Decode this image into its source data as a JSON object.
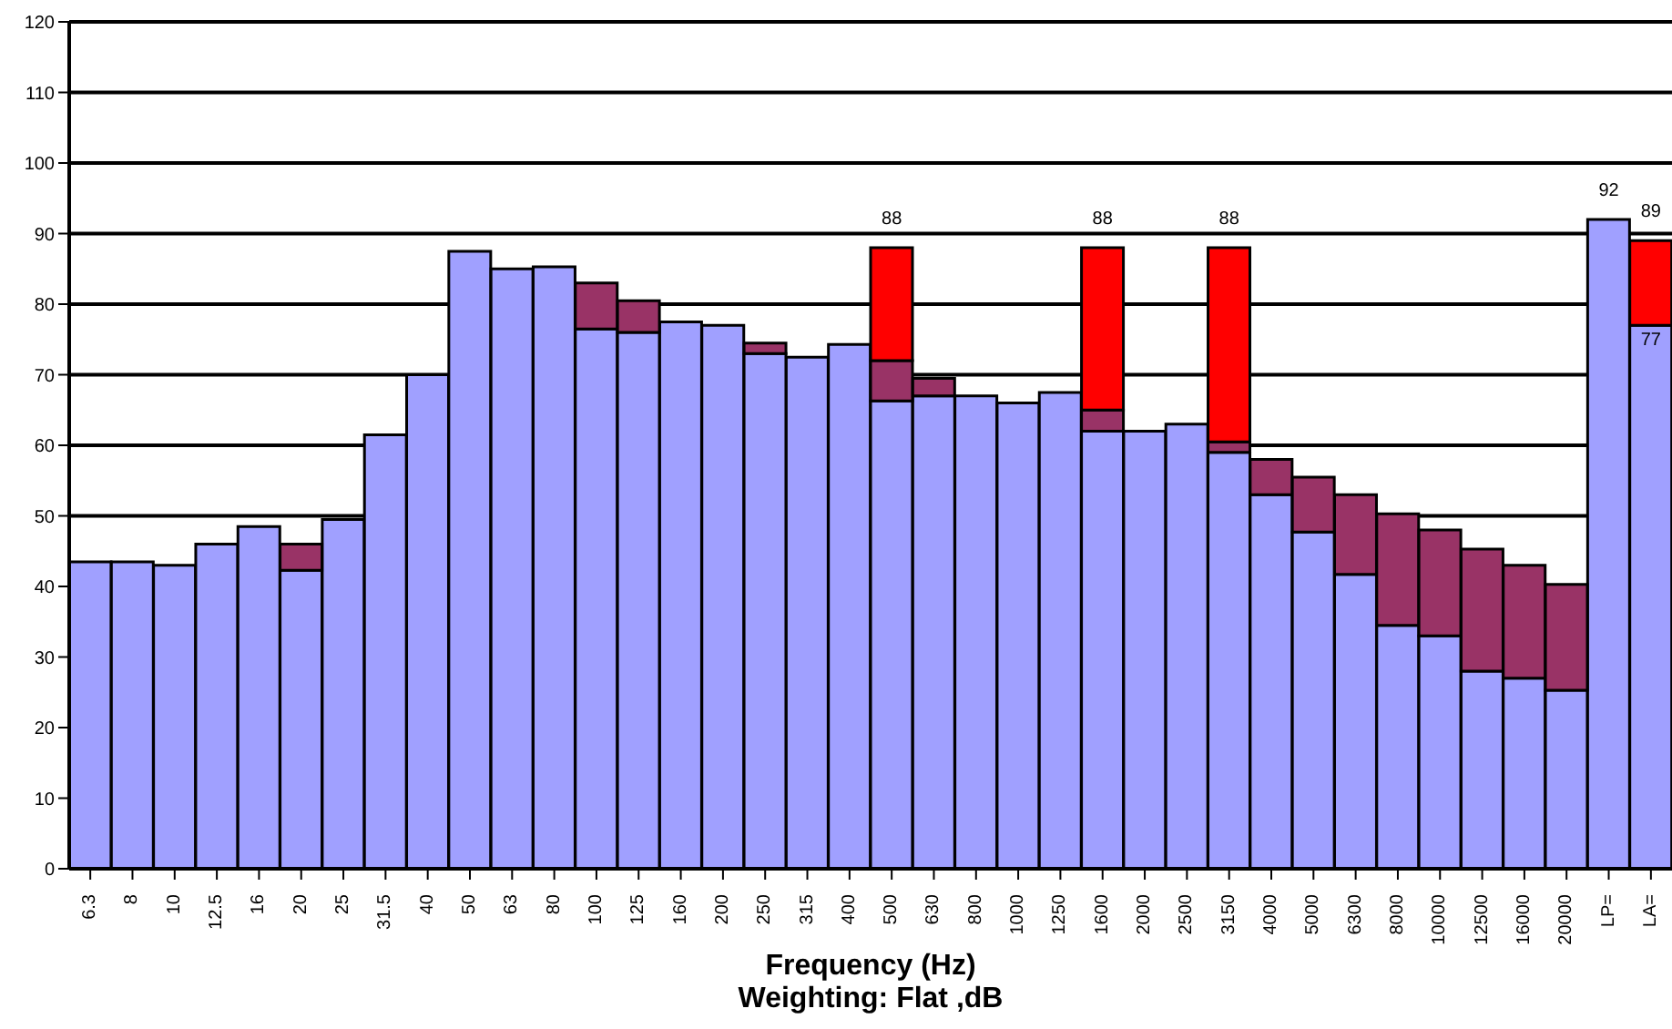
{
  "chart_data": {
    "type": "bar",
    "stacked": true,
    "xlabel": "Frequency (Hz)\nWeighting: Flat ,dB",
    "categories": [
      "6.3",
      "8",
      "10",
      "12.5",
      "16",
      "20",
      "25",
      "31.5",
      "40",
      "50",
      "63",
      "80",
      "100",
      "125",
      "160",
      "200",
      "250",
      "315",
      "400",
      "500",
      "630",
      "800",
      "1000",
      "1250",
      "1600",
      "2000",
      "2500",
      "3150",
      "4000",
      "5000",
      "6300",
      "8000",
      "10000",
      "12500",
      "16000",
      "20000",
      "LP=",
      "LA="
    ],
    "series": [
      {
        "color": "#a0a0ff",
        "values": [
          43.5,
          43.5,
          43,
          46,
          48.5,
          42.3,
          49.5,
          61.5,
          70,
          87.5,
          85,
          85.3,
          76.5,
          76,
          77.5,
          77,
          73,
          72.5,
          74.3,
          66.3,
          67,
          67,
          66,
          67.5,
          62,
          62,
          63,
          59,
          53,
          47.7,
          41.7,
          34.5,
          33,
          28,
          27,
          25.3,
          92,
          77
        ]
      },
      {
        "color": "#993366",
        "values": [
          null,
          null,
          null,
          null,
          null,
          3.7,
          null,
          null,
          null,
          null,
          null,
          null,
          6.5,
          4.5,
          null,
          null,
          1.5,
          null,
          null,
          5.7,
          2.5,
          null,
          null,
          null,
          3,
          null,
          null,
          1.5,
          5,
          7.8,
          11.3,
          15.8,
          15,
          17.3,
          16,
          15,
          null,
          null
        ]
      },
      {
        "color": "#ff0000",
        "values": [
          null,
          null,
          null,
          null,
          null,
          null,
          null,
          null,
          null,
          null,
          null,
          null,
          null,
          null,
          null,
          null,
          null,
          null,
          null,
          16,
          null,
          null,
          null,
          null,
          23,
          null,
          null,
          27.5,
          null,
          null,
          null,
          null,
          null,
          null,
          null,
          null,
          null,
          12
        ]
      }
    ],
    "annotations": [
      {
        "text": "88",
        "x": "500",
        "y": 88
      },
      {
        "text": "88",
        "x": "1600",
        "y": 88
      },
      {
        "text": "88",
        "x": "3150",
        "y": 88
      },
      {
        "text": "92",
        "x": "LP=",
        "y": 92
      },
      {
        "text": "89",
        "x": "LA=",
        "y": 89
      },
      {
        "text": "77",
        "x": "LA=",
        "y": 77
      }
    ],
    "ylim": [
      0,
      120
    ],
    "yticks": [
      0,
      10,
      20,
      30,
      40,
      50,
      60,
      70,
      80,
      90,
      100,
      110,
      120
    ],
    "grid": "y",
    "legend": false
  }
}
